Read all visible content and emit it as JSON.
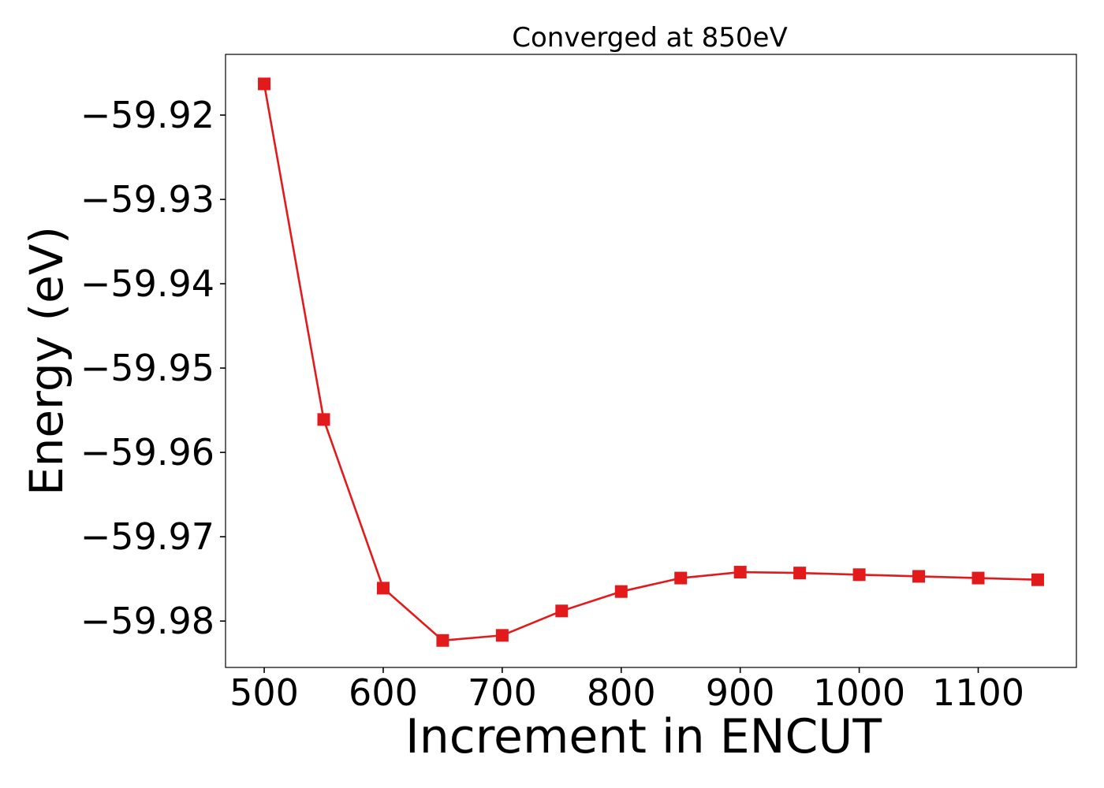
{
  "chart_data": {
    "type": "line",
    "title": "Converged at 850eV",
    "xlabel": "Increment in ENCUT",
    "ylabel": "Energy (eV)",
    "xlim": [
      467.5,
      1182.5
    ],
    "ylim": [
      -59.9855,
      -59.9128
    ],
    "xticks": [
      500,
      600,
      700,
      800,
      900,
      1000,
      1100
    ],
    "xtick_labels": [
      "500",
      "600",
      "700",
      "800",
      "900",
      "1000",
      "1100"
    ],
    "yticks": [
      -59.92,
      -59.93,
      -59.94,
      -59.95,
      -59.96,
      -59.97,
      -59.98
    ],
    "ytick_labels": [
      "−59.92",
      "−59.93",
      "−59.94",
      "−59.95",
      "−59.96",
      "−59.97",
      "−59.98"
    ],
    "grid": false,
    "series": [
      {
        "color": "#e31a1c",
        "marker": "square",
        "x": [
          500,
          550,
          600,
          650,
          700,
          750,
          800,
          850,
          900,
          950,
          1000,
          1050,
          1100,
          1150
        ],
        "y": [
          -59.9163,
          -59.9561,
          -59.9761,
          -59.9823,
          -59.9817,
          -59.9788,
          -59.9765,
          -59.9749,
          -59.9742,
          -59.9743,
          -59.9745,
          -59.9747,
          -59.9749,
          -59.9751
        ]
      }
    ]
  }
}
